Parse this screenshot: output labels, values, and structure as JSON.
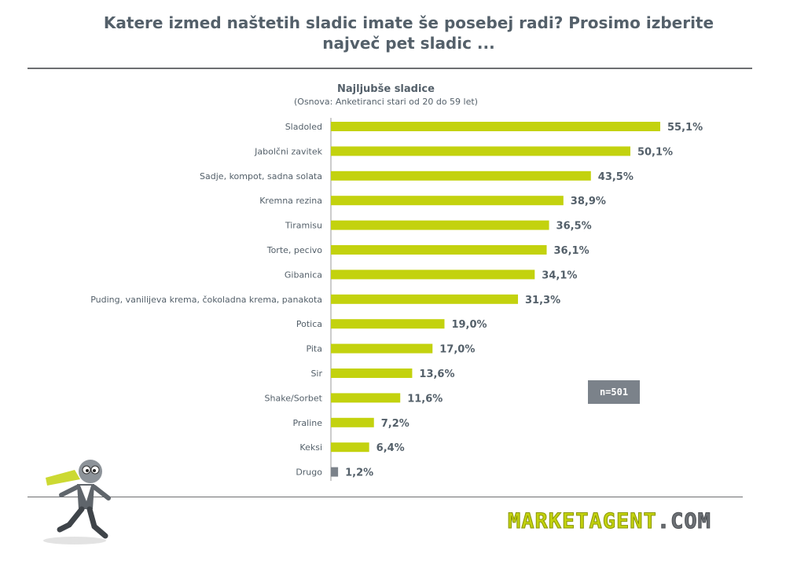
{
  "headline": {
    "line1": "Katere izmed naštetih sladic imate še posebej radi? Prosimo izberite",
    "line2": "največ pet sladic ..."
  },
  "chart_data": {
    "type": "bar",
    "orientation": "horizontal",
    "title": "Najljubše sladice",
    "subtitle": "(Osnova: Anketiranci stari od 20 do 59 let)",
    "categories": [
      "Sladoled",
      "Jabolčni zavitek",
      "Sadje, kompot, sadna solata",
      "Kremna rezina",
      "Tiramisu",
      "Torte, pecivo",
      "Gibanica",
      "Puding, vanilijeva krema, čokoladna krema, panakota",
      "Potica",
      "Pita",
      "Sir",
      "Shake/Sorbet",
      "Praline",
      "Keksi",
      "Drugo"
    ],
    "values": [
      55.1,
      50.1,
      43.5,
      38.9,
      36.5,
      36.1,
      34.1,
      31.3,
      19.0,
      17.0,
      13.6,
      11.6,
      7.2,
      6.4,
      1.2
    ],
    "value_labels": [
      "55,1%",
      "50,1%",
      "43,5%",
      "38,9%",
      "36,5%",
      "36,1%",
      "34,1%",
      "31,3%",
      "19,0%",
      "17,0%",
      "13,6%",
      "11,6%",
      "7,2%",
      "6,4%",
      "1,2%"
    ],
    "bar_colors": [
      "#c3d20e",
      "#c3d20e",
      "#c3d20e",
      "#c3d20e",
      "#c3d20e",
      "#c3d20e",
      "#c3d20e",
      "#c3d20e",
      "#c3d20e",
      "#c3d20e",
      "#c3d20e",
      "#c3d20e",
      "#c3d20e",
      "#c3d20e",
      "#7b828a"
    ],
    "xlim": [
      0,
      55.1
    ],
    "grid": false,
    "legend": "none"
  },
  "sample_badge": "n=501",
  "brand": {
    "name": "MARKETAGENT",
    "suffix": ".COM"
  },
  "colors": {
    "accent": "#c3d20e",
    "text": "#54606a",
    "gray": "#7b828a"
  }
}
